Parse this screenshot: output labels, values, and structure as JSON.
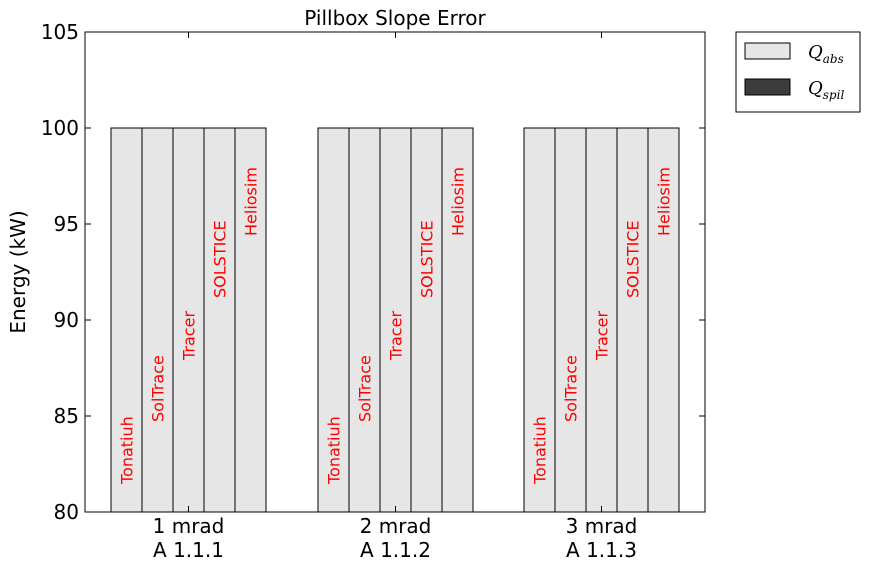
{
  "chart_data": {
    "type": "bar",
    "title": "Pillbox Slope Error",
    "ylabel": "Energy (kW)",
    "xlabel": "",
    "ylim": [
      80,
      105
    ],
    "yticks": [
      80,
      85,
      90,
      95,
      100,
      105
    ],
    "groups": [
      {
        "line1": "1 mrad",
        "line2": "A 1.1.1"
      },
      {
        "line1": "2 mrad",
        "line2": "A 1.1.2"
      },
      {
        "line1": "3 mrad",
        "line2": "A 1.1.3"
      }
    ],
    "bar_names": [
      "Tonatiuh",
      "SolTrace",
      "Tracer",
      "SOLSTICE",
      "Heliosim"
    ],
    "series": [
      {
        "name": "Q_abs",
        "legend_main": "Q",
        "legend_sub": "abs",
        "color": "#e6e6e6",
        "values": [
          [
            100,
            100,
            100,
            100,
            100
          ],
          [
            100,
            100,
            100,
            100,
            100
          ],
          [
            100,
            100,
            100,
            100,
            100
          ]
        ]
      },
      {
        "name": "Q_spil",
        "legend_main": "Q",
        "legend_sub": "spil",
        "color": "#3c3c3c",
        "values": [
          [
            0,
            0,
            0,
            0,
            0
          ],
          [
            0,
            0,
            0,
            0,
            0
          ],
          [
            0,
            0,
            0,
            0,
            0
          ]
        ]
      }
    ],
    "label_color": "#ff0000",
    "legend_position": "outside-top-right",
    "grid": false
  }
}
